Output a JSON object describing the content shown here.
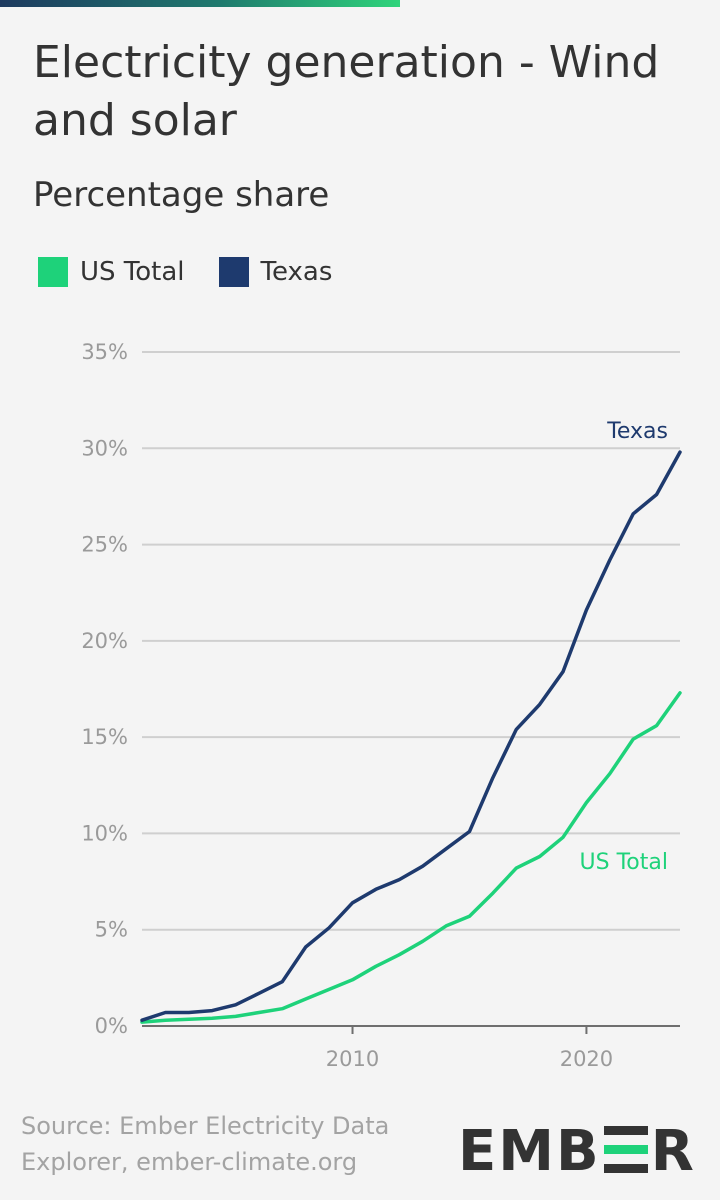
{
  "title": "Electricity generation - Wind and solar",
  "subtitle": "Percentage share",
  "legend": [
    {
      "label": "US Total",
      "color": "#1ed27a"
    },
    {
      "label": "Texas",
      "color": "#1e3a6e"
    }
  ],
  "source": "Source: Ember Electricity Data Explorer, ember-climate.org",
  "logo": {
    "text": "EMBER",
    "letters": [
      "E",
      "M",
      "B",
      "E",
      "R"
    ]
  },
  "chart_data": {
    "type": "line",
    "title": "Electricity generation - Wind and solar",
    "subtitle": "Percentage share",
    "xlabel": "",
    "ylabel": "",
    "ylim": [
      0,
      35
    ],
    "xlim": [
      2001,
      2024
    ],
    "x_ticks": [
      2010,
      2020
    ],
    "y_ticks": [
      0,
      5,
      10,
      15,
      20,
      25,
      30,
      35
    ],
    "y_tick_labels": [
      "0%",
      "5%",
      "10%",
      "15%",
      "20%",
      "25%",
      "30%",
      "35%"
    ],
    "grid": true,
    "legend_position": "top-left",
    "x": [
      2001,
      2002,
      2003,
      2004,
      2005,
      2006,
      2007,
      2008,
      2009,
      2010,
      2011,
      2012,
      2013,
      2014,
      2015,
      2016,
      2017,
      2018,
      2019,
      2020,
      2021,
      2022,
      2023,
      2024
    ],
    "series": [
      {
        "name": "US Total",
        "color": "#1ed27a",
        "end_label": "US Total",
        "values": [
          0.2,
          0.3,
          0.35,
          0.4,
          0.5,
          0.7,
          0.9,
          1.4,
          1.9,
          2.4,
          3.1,
          3.7,
          4.4,
          5.2,
          5.7,
          6.9,
          8.2,
          8.8,
          9.8,
          11.6,
          13.1,
          14.9,
          15.6,
          17.3
        ]
      },
      {
        "name": "Texas",
        "color": "#1e3a6e",
        "end_label": "Texas",
        "values": [
          0.3,
          0.7,
          0.7,
          0.8,
          1.1,
          1.7,
          2.3,
          4.1,
          5.1,
          6.4,
          7.1,
          7.6,
          8.3,
          9.2,
          10.1,
          12.9,
          15.4,
          16.7,
          18.4,
          21.6,
          24.2,
          26.6,
          27.6,
          29.8
        ]
      }
    ]
  }
}
